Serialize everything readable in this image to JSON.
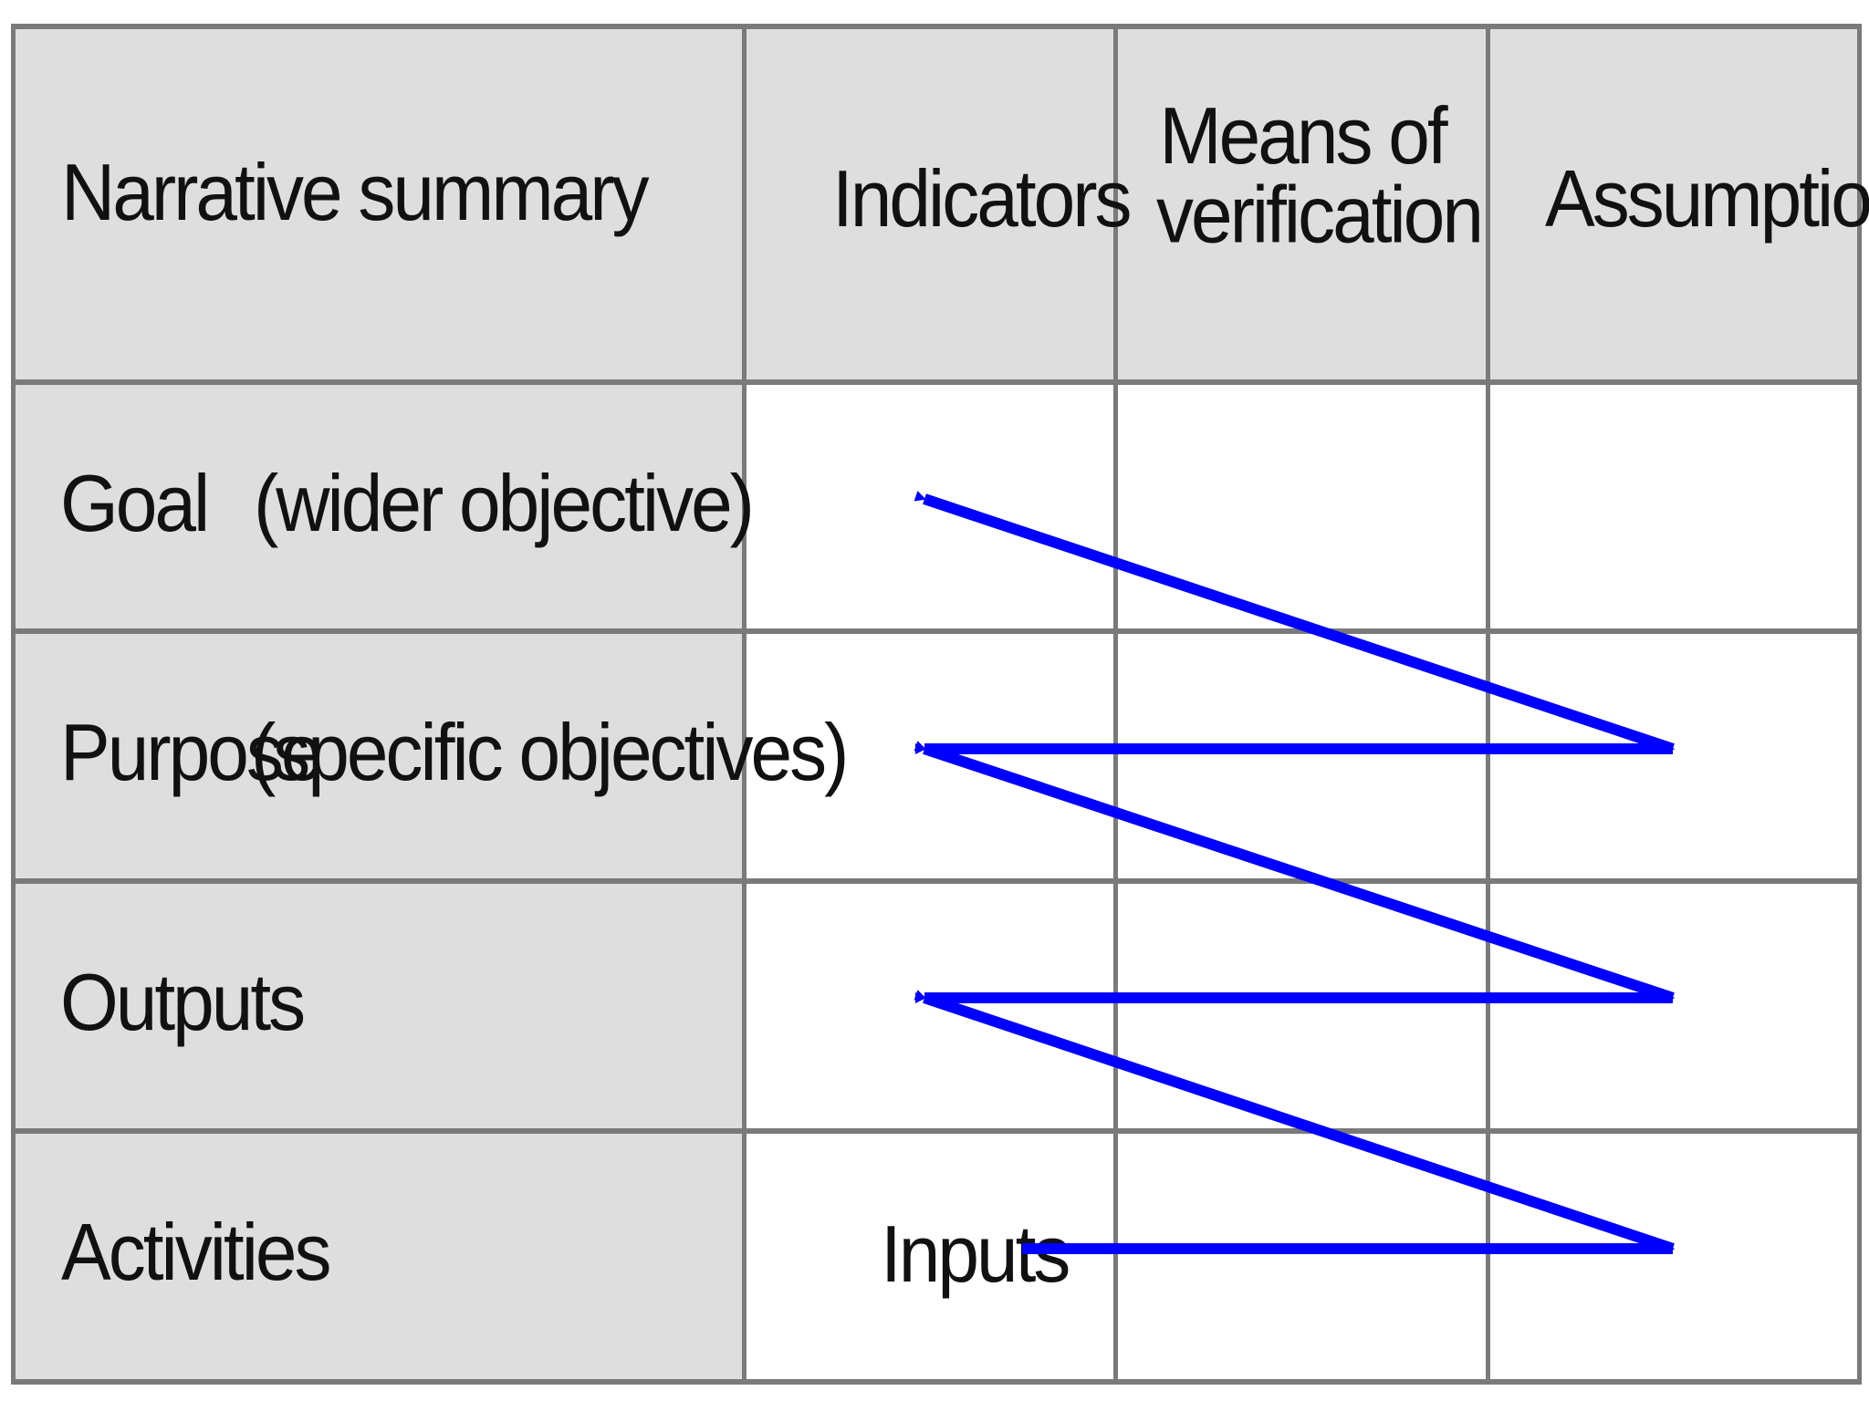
{
  "table": {
    "columns": [
      "Narrative summary",
      "Indicators",
      "Means of verification",
      "Assumptions"
    ],
    "rows": [
      {
        "label": "Goal",
        "detail": "(wider objective)"
      },
      {
        "label": "Purpose",
        "detail": "(specific objectives)"
      },
      {
        "label": "Outputs"
      },
      {
        "label": "Activities",
        "inline_label": "Inputs"
      }
    ]
  },
  "colors": {
    "header_background": "#dedede",
    "label_background": "#dedede",
    "body_background": "#ffffff",
    "grid": "#7a7a7a",
    "arrow": "#0000ff"
  }
}
